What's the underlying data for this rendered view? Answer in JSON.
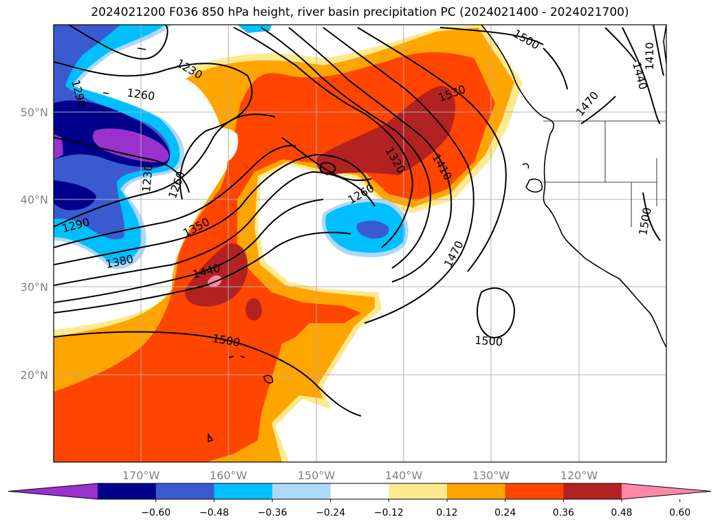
{
  "title": "2024021200 F036 850 hPa height, river basin precipitation PC (2024021400 - 2024021700)",
  "map": {
    "projection": "equirectangular",
    "extent": {
      "lon_west": -180,
      "lon_east": -110,
      "lat_south": 10,
      "lat_north": 60
    },
    "grid": true
  },
  "lat_labels": [
    "50°N",
    "40°N",
    "30°N",
    "20°N"
  ],
  "lon_labels": [
    "170°W",
    "160°W",
    "150°W",
    "140°W",
    "130°W",
    "120°W"
  ],
  "contour_labels": [
    "1230",
    "1260",
    "1290",
    "1260",
    "1230",
    "1260",
    "1290",
    "1350",
    "1380",
    "1440",
    "1500",
    "1500",
    "1470",
    "1410",
    "1320",
    "1530",
    "1500",
    "1470",
    "1440",
    "1410",
    "1500"
  ],
  "colorbar": {
    "ticks": [
      "−0.60",
      "−0.48",
      "−0.36",
      "−0.24",
      "−0.12",
      "0.12",
      "0.24",
      "0.36",
      "0.48",
      "0.60"
    ],
    "colors": [
      "#9932cc",
      "#00008b",
      "#3a5ad0",
      "#00bfff",
      "#add8f8",
      "#ffffff",
      "#fde98e",
      "#ffa500",
      "#ff4500",
      "#b22222",
      "#ff88aa"
    ],
    "extend": "both"
  },
  "fill_colors": {
    "orange": "#ffa500",
    "red_orange": "#ff4500",
    "dark_red": "#b22222",
    "pink": "#ff88aa",
    "light_yellow": "#fde98e",
    "light_blue": "#add8f8",
    "deep_sky_blue": "#00bfff",
    "royal_blue": "#3a5ad0",
    "navy": "#00008b",
    "purple": "#9932cc"
  }
}
